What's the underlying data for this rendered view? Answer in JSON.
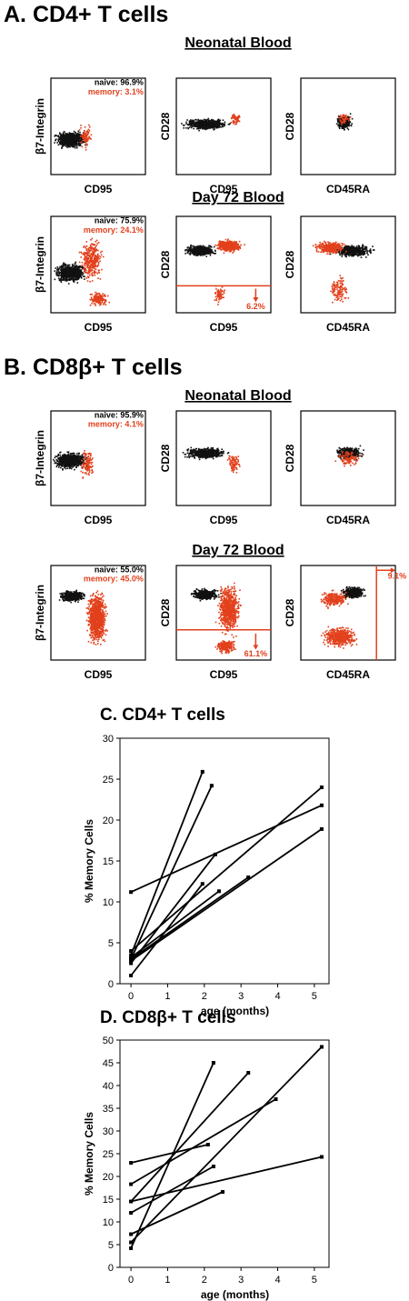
{
  "colors": {
    "naive": "#111111",
    "memory": "#e2401c",
    "axis": "#000000"
  },
  "sections": [
    {
      "title": "A.  CD4+ T cells",
      "groups": [
        {
          "title": "Neonatal Blood",
          "plots": [
            {
              "ylabel": "β7-Integrin",
              "xlabel": "CD95",
              "labels": [
                "naive: 96.9%",
                "memory: 3.1%"
              ]
            },
            {
              "ylabel": "CD28",
              "xlabel": "CD95",
              "labels": []
            },
            {
              "ylabel": "CD28",
              "xlabel": "CD45RA",
              "labels": []
            }
          ]
        },
        {
          "title": "Day 72 Blood",
          "plots": [
            {
              "ylabel": "β7-Integrin",
              "xlabel": "CD95",
              "labels": [
                "naive: 75.9%",
                "memory: 24.1%"
              ]
            },
            {
              "ylabel": "CD28",
              "xlabel": "CD95",
              "labels": [
                "6.2%"
              ]
            },
            {
              "ylabel": "CD28",
              "xlabel": "CD45RA",
              "labels": []
            }
          ]
        }
      ]
    },
    {
      "title": "B.  CD8β+ T cells",
      "groups": [
        {
          "title": "Neonatal Blood",
          "plots": [
            {
              "ylabel": "β7-Integrin",
              "xlabel": "CD95",
              "labels": [
                "naive: 95.9%",
                "memory: 4.1%"
              ]
            },
            {
              "ylabel": "CD28",
              "xlabel": "CD95",
              "labels": []
            },
            {
              "ylabel": "CD28",
              "xlabel": "CD45RA",
              "labels": []
            }
          ]
        },
        {
          "title": "Day 72 Blood",
          "plots": [
            {
              "ylabel": "β7-Integrin",
              "xlabel": "CD95",
              "labels": [
                "naive: 55.0%",
                "memory: 45.0%"
              ]
            },
            {
              "ylabel": "CD28",
              "xlabel": "CD95",
              "labels": [
                "61.1%"
              ]
            },
            {
              "ylabel": "CD28",
              "xlabel": "CD45RA",
              "labels": [
                "9.1%"
              ]
            }
          ]
        }
      ]
    }
  ],
  "chart_data": [
    {
      "type": "line",
      "title": "C. CD4+ T cells",
      "xlabel": "age (months)",
      "ylabel": "% Memory Cells",
      "xlim": [
        -0.3,
        5.4
      ],
      "ylim": [
        0,
        30
      ],
      "xticks": [
        0,
        1,
        2,
        3,
        4,
        5
      ],
      "yticks": [
        0,
        5,
        10,
        15,
        20,
        25,
        30
      ],
      "series": [
        {
          "x": [
            0,
            1.95
          ],
          "y": [
            3.5,
            25.9
          ]
        },
        {
          "x": [
            0,
            2.2
          ],
          "y": [
            3.0,
            24.2
          ]
        },
        {
          "x": [
            0,
            2.3
          ],
          "y": [
            2.5,
            15.8
          ]
        },
        {
          "x": [
            0,
            1.95
          ],
          "y": [
            1.0,
            12.2
          ]
        },
        {
          "x": [
            0,
            5.2
          ],
          "y": [
            4.0,
            24.0
          ]
        },
        {
          "x": [
            0,
            5.2
          ],
          "y": [
            11.2,
            21.8
          ]
        },
        {
          "x": [
            0,
            3.2
          ],
          "y": [
            3.0,
            13.0
          ]
        },
        {
          "x": [
            0,
            2.4
          ],
          "y": [
            3.2,
            11.3
          ]
        },
        {
          "x": [
            0,
            5.2
          ],
          "y": [
            2.8,
            18.9
          ]
        }
      ]
    },
    {
      "type": "line",
      "title": "D. CD8β+ T cells",
      "xlabel": "age (months)",
      "ylabel": "% Memory Cells",
      "xlim": [
        -0.3,
        5.4
      ],
      "ylim": [
        0,
        50
      ],
      "xticks": [
        0,
        1,
        2,
        3,
        4,
        5
      ],
      "yticks": [
        0,
        5,
        10,
        15,
        20,
        25,
        30,
        35,
        40,
        45,
        50
      ],
      "series": [
        {
          "x": [
            0,
            2.25
          ],
          "y": [
            4.2,
            45.0
          ]
        },
        {
          "x": [
            0,
            3.2
          ],
          "y": [
            14.5,
            42.8
          ]
        },
        {
          "x": [
            0,
            2.1
          ],
          "y": [
            23.0,
            27.0
          ]
        },
        {
          "x": [
            0,
            3.95
          ],
          "y": [
            18.3,
            37.0
          ]
        },
        {
          "x": [
            0,
            2.25
          ],
          "y": [
            12.0,
            22.2
          ]
        },
        {
          "x": [
            0,
            5.2
          ],
          "y": [
            5.5,
            48.5
          ]
        },
        {
          "x": [
            0,
            5.2
          ],
          "y": [
            14.5,
            24.3
          ]
        },
        {
          "x": [
            0,
            2.5
          ],
          "y": [
            7.3,
            16.6
          ]
        }
      ]
    }
  ]
}
